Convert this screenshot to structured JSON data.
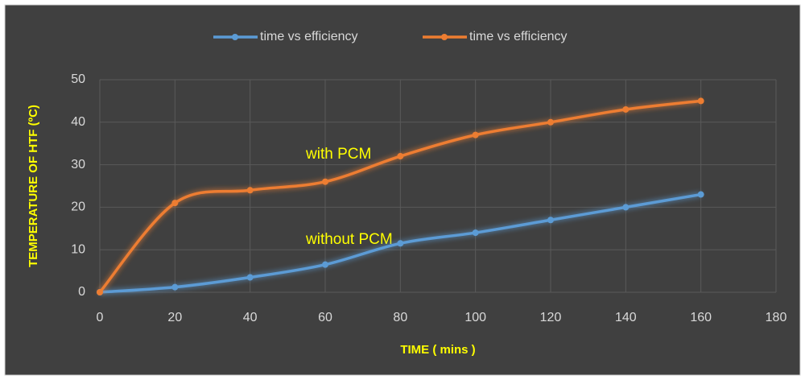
{
  "chart_data": {
    "type": "line",
    "x_label": "TIME ( mins )",
    "y_label": "TEMPERATURE OF HTF (ºC)",
    "x": [
      0,
      20,
      40,
      60,
      80,
      100,
      120,
      140,
      160
    ],
    "series": [
      {
        "name": "time vs efficiency",
        "color": "#5b9bd5",
        "values": [
          0,
          1.2,
          3.5,
          6.5,
          11.5,
          14,
          17,
          20,
          23
        ]
      },
      {
        "name": "time vs efficiency",
        "color": "#ed7d31",
        "values": [
          0,
          21,
          24,
          26,
          32,
          37,
          40,
          43,
          45
        ]
      }
    ],
    "annotations": [
      "with PCM",
      "without PCM"
    ],
    "xlim": [
      0,
      180
    ],
    "xticks": [
      0,
      20,
      40,
      60,
      80,
      100,
      120,
      140,
      160,
      180
    ],
    "ylim": [
      0,
      50
    ],
    "yticks": [
      0,
      10,
      20,
      30,
      40,
      50
    ],
    "grid": true,
    "legend": "top"
  }
}
